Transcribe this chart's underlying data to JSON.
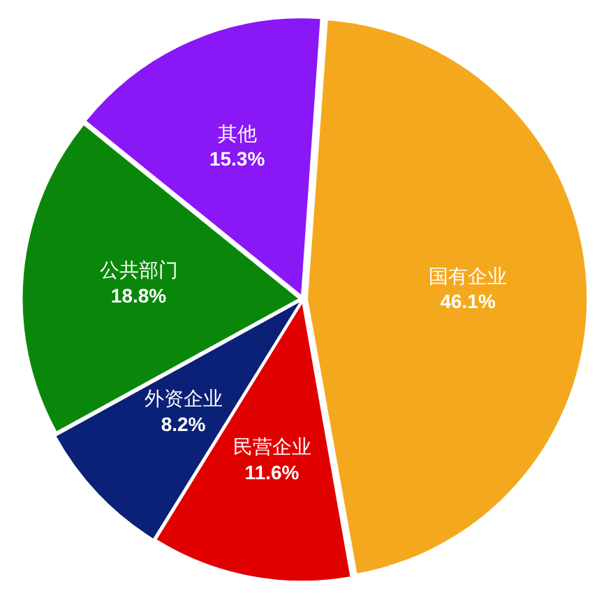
{
  "chart_data": {
    "type": "pie",
    "categories": [
      "国有企业",
      "民营企业",
      "外资企业",
      "公共部门",
      "其他"
    ],
    "values": [
      46.1,
      11.6,
      8.2,
      18.8,
      15.3
    ],
    "colors": [
      "#f4a81d",
      "#e00000",
      "#0b2077",
      "#0a870a",
      "#8a17f5"
    ],
    "value_labels": [
      "46.1%",
      "11.6%",
      "8.2%",
      "18.8%",
      "15.3%"
    ],
    "legend": false
  }
}
